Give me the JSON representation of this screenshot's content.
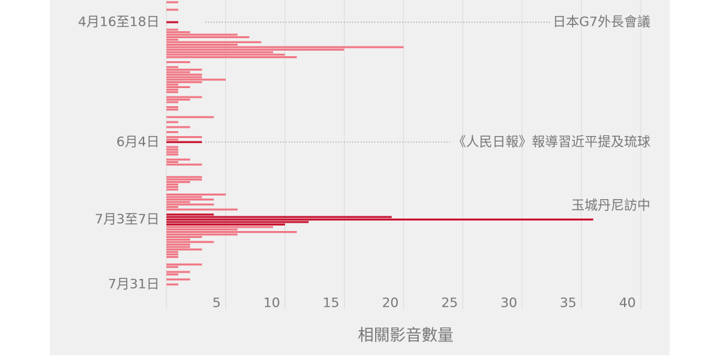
{
  "chart_data": {
    "type": "hbar",
    "categories": [
      null,
      null,
      null,
      null,
      null,
      null,
      null,
      null,
      "4月16至18日",
      null,
      null,
      null,
      null,
      null,
      null,
      null,
      null,
      null,
      null,
      null,
      null,
      null,
      null,
      null,
      null,
      null,
      null,
      null,
      null,
      null,
      null,
      null,
      null,
      null,
      null,
      null,
      null,
      null,
      null,
      null,
      null,
      null,
      null,
      null,
      null,
      null,
      null,
      null,
      null,
      null,
      null,
      null,
      null,
      null,
      null,
      null,
      "6月4日",
      null,
      null,
      null,
      null,
      null,
      null,
      null,
      null,
      null,
      null,
      null,
      null,
      null,
      null,
      null,
      null,
      null,
      null,
      null,
      null,
      null,
      null,
      null,
      null,
      null,
      null,
      null,
      null,
      null,
      null,
      "7月3至7日",
      null,
      null,
      null,
      null,
      null,
      null,
      null,
      null,
      null,
      null,
      null,
      null,
      null,
      null,
      null,
      null,
      null,
      null,
      null,
      null,
      null,
      null,
      null,
      null,
      null,
      "7月31日",
      null,
      null
    ],
    "values": [
      1,
      0,
      0,
      1,
      0,
      0,
      0,
      0,
      1,
      0,
      0,
      1,
      2,
      6,
      7,
      1,
      8,
      6,
      20,
      15,
      9,
      10,
      11,
      0,
      2,
      0,
      1,
      3,
      2,
      3,
      3,
      5,
      3,
      1,
      2,
      1,
      1,
      0,
      3,
      2,
      1,
      0,
      1,
      1,
      0,
      0,
      4,
      0,
      1,
      0,
      2,
      0,
      1,
      0,
      3,
      1,
      3,
      0,
      1,
      1,
      1,
      1,
      0,
      2,
      1,
      3,
      0,
      0,
      0,
      0,
      3,
      3,
      2,
      1,
      1,
      1,
      0,
      5,
      3,
      4,
      2,
      4,
      1,
      6,
      0,
      4,
      19,
      36,
      12,
      10,
      9,
      6,
      11,
      6,
      3,
      2,
      4,
      2,
      2,
      3,
      1,
      1,
      1,
      0,
      0,
      3,
      1,
      0,
      2,
      1,
      0,
      2,
      0,
      1,
      0,
      0
    ],
    "colors": [
      "#f07583",
      "#f07583",
      "#f07583",
      "#f07583",
      "#f07583",
      "#f07583",
      "#f07583",
      "#f07583",
      "#c8102e",
      "#f07583",
      "#f07583",
      "#f07583",
      "#f07583",
      "#f07583",
      "#f07583",
      "#f07583",
      "#f07583",
      "#f07583",
      "#f07583",
      "#f07583",
      "#f07583",
      "#f07583",
      "#f07583",
      "#f07583",
      "#f07583",
      "#f07583",
      "#f07583",
      "#f07583",
      "#f07583",
      "#f07583",
      "#f07583",
      "#f07583",
      "#f07583",
      "#f07583",
      "#f07583",
      "#f07583",
      "#f07583",
      "#f07583",
      "#f07583",
      "#f07583",
      "#f07583",
      "#f07583",
      "#f07583",
      "#f07583",
      "#f07583",
      "#f07583",
      "#f07583",
      "#f07583",
      "#f07583",
      "#f07583",
      "#f07583",
      "#f07583",
      "#f07583",
      "#f07583",
      "#f07583",
      "#f07583",
      "#c8102e",
      "#f07583",
      "#f07583",
      "#f07583",
      "#f07583",
      "#f07583",
      "#f07583",
      "#f07583",
      "#f07583",
      "#f07583",
      "#f07583",
      "#f07583",
      "#f07583",
      "#f07583",
      "#f07583",
      "#f07583",
      "#f07583",
      "#f07583",
      "#f07583",
      "#f07583",
      "#f07583",
      "#f07583",
      "#f07583",
      "#f07583",
      "#f07583",
      "#f07583",
      "#f07583",
      "#f07583",
      "#f07583",
      "#c8102e",
      "#c8102e",
      "#c8102e",
      "#c8102e",
      "#c8102e",
      "#f07583",
      "#f07583",
      "#f07583",
      "#f07583",
      "#f07583",
      "#f07583",
      "#f07583",
      "#f07583",
      "#f07583",
      "#f07583",
      "#f07583",
      "#f07583",
      "#f07583",
      "#f07583",
      "#f07583",
      "#f07583",
      "#f07583",
      "#f07583",
      "#f07583",
      "#f07583",
      "#f07583",
      "#f07583",
      "#f07583",
      "#f07583",
      "#f07583",
      "#f07583"
    ],
    "xlim": [
      0,
      40
    ],
    "xticks": [
      5,
      10,
      15,
      20,
      25,
      30,
      35,
      40
    ],
    "grid": true,
    "x_label": "相關影音數量",
    "annotations": [
      {
        "text": "日本G7外長會議",
        "row": 8,
        "leader": true
      },
      {
        "text": "《人民日報》報導習近平提及琉球",
        "row": 56,
        "leader": true
      },
      {
        "text": "玉城丹尼訪中",
        "row": 87,
        "leader": false
      }
    ]
  }
}
